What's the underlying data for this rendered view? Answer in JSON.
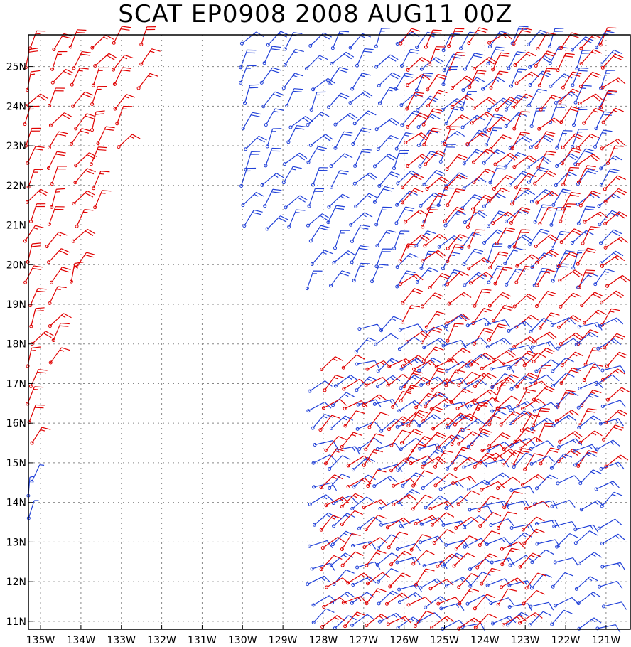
{
  "title": "SCAT EP0908 2008 AUG11 00Z",
  "colors": {
    "satellite_a": "#e00000",
    "satellite_b": "#2040d8",
    "grid": "#888888",
    "frame": "#000000"
  },
  "map": {
    "lon_range": [
      -135.3,
      -120.4
    ],
    "lat_range": [
      10.8,
      25.8
    ],
    "lon_ticks": [
      -135,
      -134,
      -133,
      -132,
      -131,
      -130,
      -129,
      -128,
      -127,
      -126,
      -125,
      -124,
      -123,
      -122,
      -121
    ],
    "lon_labels": [
      "135W",
      "134W",
      "133W",
      "132W",
      "131W",
      "130W",
      "129W",
      "128W",
      "127W",
      "126W",
      "125W",
      "124W",
      "123W",
      "122W",
      "121W"
    ],
    "lat_ticks": [
      11,
      12,
      13,
      14,
      15,
      16,
      17,
      18,
      19,
      20,
      21,
      22,
      23,
      24,
      25
    ],
    "lat_labels": [
      "11N",
      "12N",
      "13N",
      "14N",
      "15N",
      "16N",
      "17N",
      "18N",
      "19N",
      "20N",
      "21N",
      "22N",
      "23N",
      "24N",
      "25N"
    ]
  },
  "wind_swaths": [
    {
      "name": "red-left-swath",
      "color": "red",
      "lon_min": -135.3,
      "lon_max": -132.0,
      "lat_min": 15.5,
      "lat_max": 25.6,
      "dir_deg": 30,
      "speed_kt": 20,
      "east_edge": [
        [
          15.5,
          -135.1
        ],
        [
          18,
          -134.6
        ],
        [
          21,
          -133.7
        ],
        [
          24,
          -132.6
        ],
        [
          25.6,
          -132.0
        ]
      ]
    },
    {
      "name": "blue-north-swath",
      "color": "blue",
      "lon_min": -130.0,
      "lon_max": -121.0,
      "lat_min": 19.5,
      "lat_max": 25.7,
      "dir_deg": 35,
      "speed_kt": 20
    },
    {
      "name": "red-east-swath",
      "color": "red",
      "lon_min": -126.0,
      "lon_max": -120.6,
      "lat_min": 15.0,
      "lat_max": 25.6,
      "dir_deg": 40,
      "speed_kt": 20
    },
    {
      "name": "blue-south-swath",
      "color": "blue",
      "lon_min": -128.3,
      "lon_max": -120.8,
      "lat_min": 10.9,
      "lat_max": 18.5,
      "dir_deg": 60,
      "speed_kt": 15
    },
    {
      "name": "red-south-swath",
      "color": "red",
      "lon_min": -128.0,
      "lon_max": -122.6,
      "lat_min": 10.9,
      "lat_max": 17.5,
      "dir_deg": 50,
      "speed_kt": 15
    },
    {
      "name": "blue-isolated",
      "color": "blue",
      "lon_min": -135.3,
      "lon_max": -134.9,
      "lat_min": 13.6,
      "lat_max": 14.6,
      "dir_deg": 20,
      "speed_kt": 5
    }
  ]
}
